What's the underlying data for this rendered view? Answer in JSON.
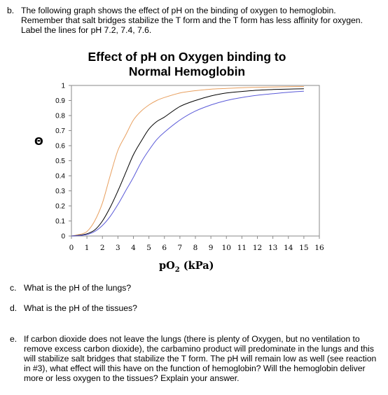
{
  "questions": {
    "b": {
      "label": "b.",
      "text": "The following graph shows the effect of pH on the binding of oxygen to hemoglobin. Remember that salt bridges stabilize the T form and the T form has less affinity for oxygen.  Label the lines for pH 7.2, 7.4, 7.6."
    },
    "c": {
      "label": "c.",
      "text": "What is the pH of the lungs?"
    },
    "d": {
      "label": "d.",
      "text": "What is the pH of the tissues?"
    },
    "e": {
      "label": "e.",
      "text": "If carbon dioxide does not leave the lungs (there is plenty of Oxygen, but no ventilation to remove excess carbon dioxide), the carbamino product will predominate in the lungs and this will stabilize salt bridges that stabilize the T form.  The pH will remain low as well  (see reaction in #3), what effect will this have on the function of hemoglobin?  Will the hemoglobin deliver more or less oxygen to the tissues?  Explain your answer."
    }
  },
  "chart_data": {
    "type": "line",
    "title": "Effect of pH on Oxygen binding to Normal Hemoglobin",
    "ylabel": "Θ",
    "xlabel_main": "pO",
    "xlabel_sub": "2",
    "xlabel_unit": " (kPa)",
    "xlim": [
      0,
      16
    ],
    "ylim": [
      0,
      1
    ],
    "x_ticks": [
      "0",
      "1",
      "2",
      "3",
      "4",
      "5",
      "6",
      "7",
      "8",
      "9",
      "10",
      "11",
      "12",
      "13",
      "14",
      "15",
      "16"
    ],
    "y_ticks": [
      "0",
      "0.1",
      "0.2",
      "0.3",
      "0.4",
      "0.5",
      "0.6",
      "0.7",
      "0.8",
      "0.9",
      "1"
    ],
    "grid": false,
    "legend": "none",
    "x": [
      0,
      0.5,
      1,
      1.5,
      2,
      2.5,
      3,
      3.5,
      4,
      4.5,
      5,
      5.5,
      6,
      7,
      8,
      9,
      10,
      11,
      12,
      13,
      14,
      15
    ],
    "series": [
      {
        "color": "#e8a060",
        "values": [
          0,
          0.01,
          0.03,
          0.1,
          0.22,
          0.4,
          0.57,
          0.67,
          0.77,
          0.83,
          0.87,
          0.9,
          0.92,
          0.95,
          0.965,
          0.975,
          0.98,
          0.985,
          0.988,
          0.99,
          0.992,
          0.993
        ]
      },
      {
        "color": "#000000",
        "values": [
          0,
          0.005,
          0.015,
          0.04,
          0.1,
          0.19,
          0.3,
          0.42,
          0.54,
          0.63,
          0.71,
          0.76,
          0.79,
          0.86,
          0.9,
          0.93,
          0.95,
          0.96,
          0.968,
          0.973,
          0.976,
          0.978
        ]
      },
      {
        "color": "#5a5ad8",
        "values": [
          0,
          0.003,
          0.01,
          0.03,
          0.07,
          0.13,
          0.21,
          0.3,
          0.39,
          0.49,
          0.57,
          0.64,
          0.69,
          0.77,
          0.83,
          0.87,
          0.9,
          0.92,
          0.935,
          0.945,
          0.955,
          0.962
        ]
      }
    ]
  }
}
